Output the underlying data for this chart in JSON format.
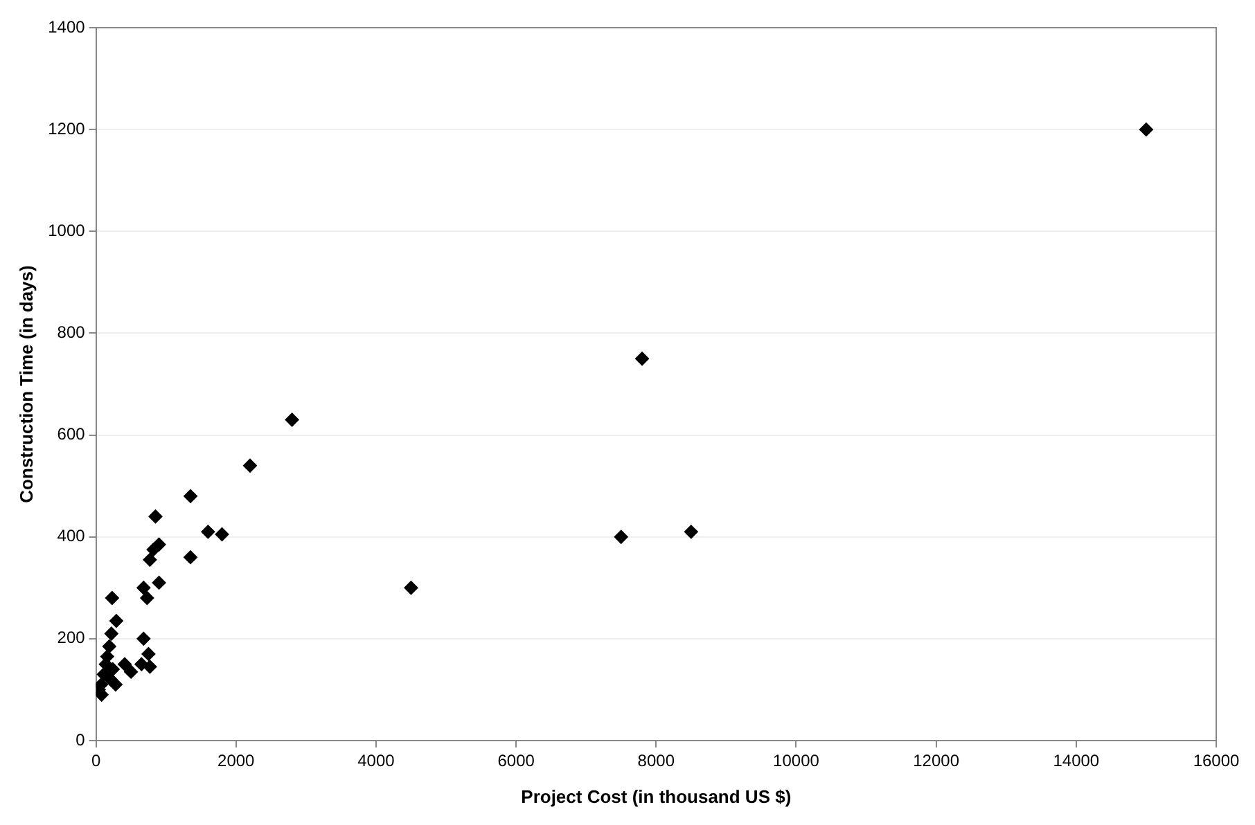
{
  "chart_data": {
    "type": "scatter",
    "xlabel": "Project Cost (in thousand US $)",
    "ylabel": "Construction Time (in days)",
    "xlim": [
      0,
      16000
    ],
    "xticks": [
      0,
      2000,
      4000,
      6000,
      8000,
      10000,
      12000,
      14000,
      16000
    ],
    "ylim": [
      0,
      1400
    ],
    "yticks": [
      0,
      200,
      400,
      600,
      800,
      1000,
      1200,
      1400
    ],
    "grid": "y",
    "legend": false,
    "marker": "diamond",
    "series": [
      {
        "color": "#000000",
        "x": [
          15000,
          7800,
          7500,
          8500,
          4500,
          2800,
          2200,
          1350,
          1600,
          1800,
          1350,
          850,
          900,
          820,
          770,
          680,
          900,
          730,
          230,
          290,
          220,
          190,
          160,
          140,
          110,
          75,
          80,
          210,
          280,
          410,
          500,
          680,
          750,
          650,
          770,
          40,
          240
        ],
        "values": [
          1200,
          750,
          400,
          410,
          300,
          630,
          540,
          480,
          410,
          405,
          360,
          440,
          385,
          375,
          355,
          300,
          310,
          280,
          280,
          235,
          210,
          185,
          165,
          150,
          130,
          110,
          90,
          120,
          110,
          150,
          135,
          200,
          170,
          150,
          145,
          100,
          140
        ]
      }
    ]
  }
}
